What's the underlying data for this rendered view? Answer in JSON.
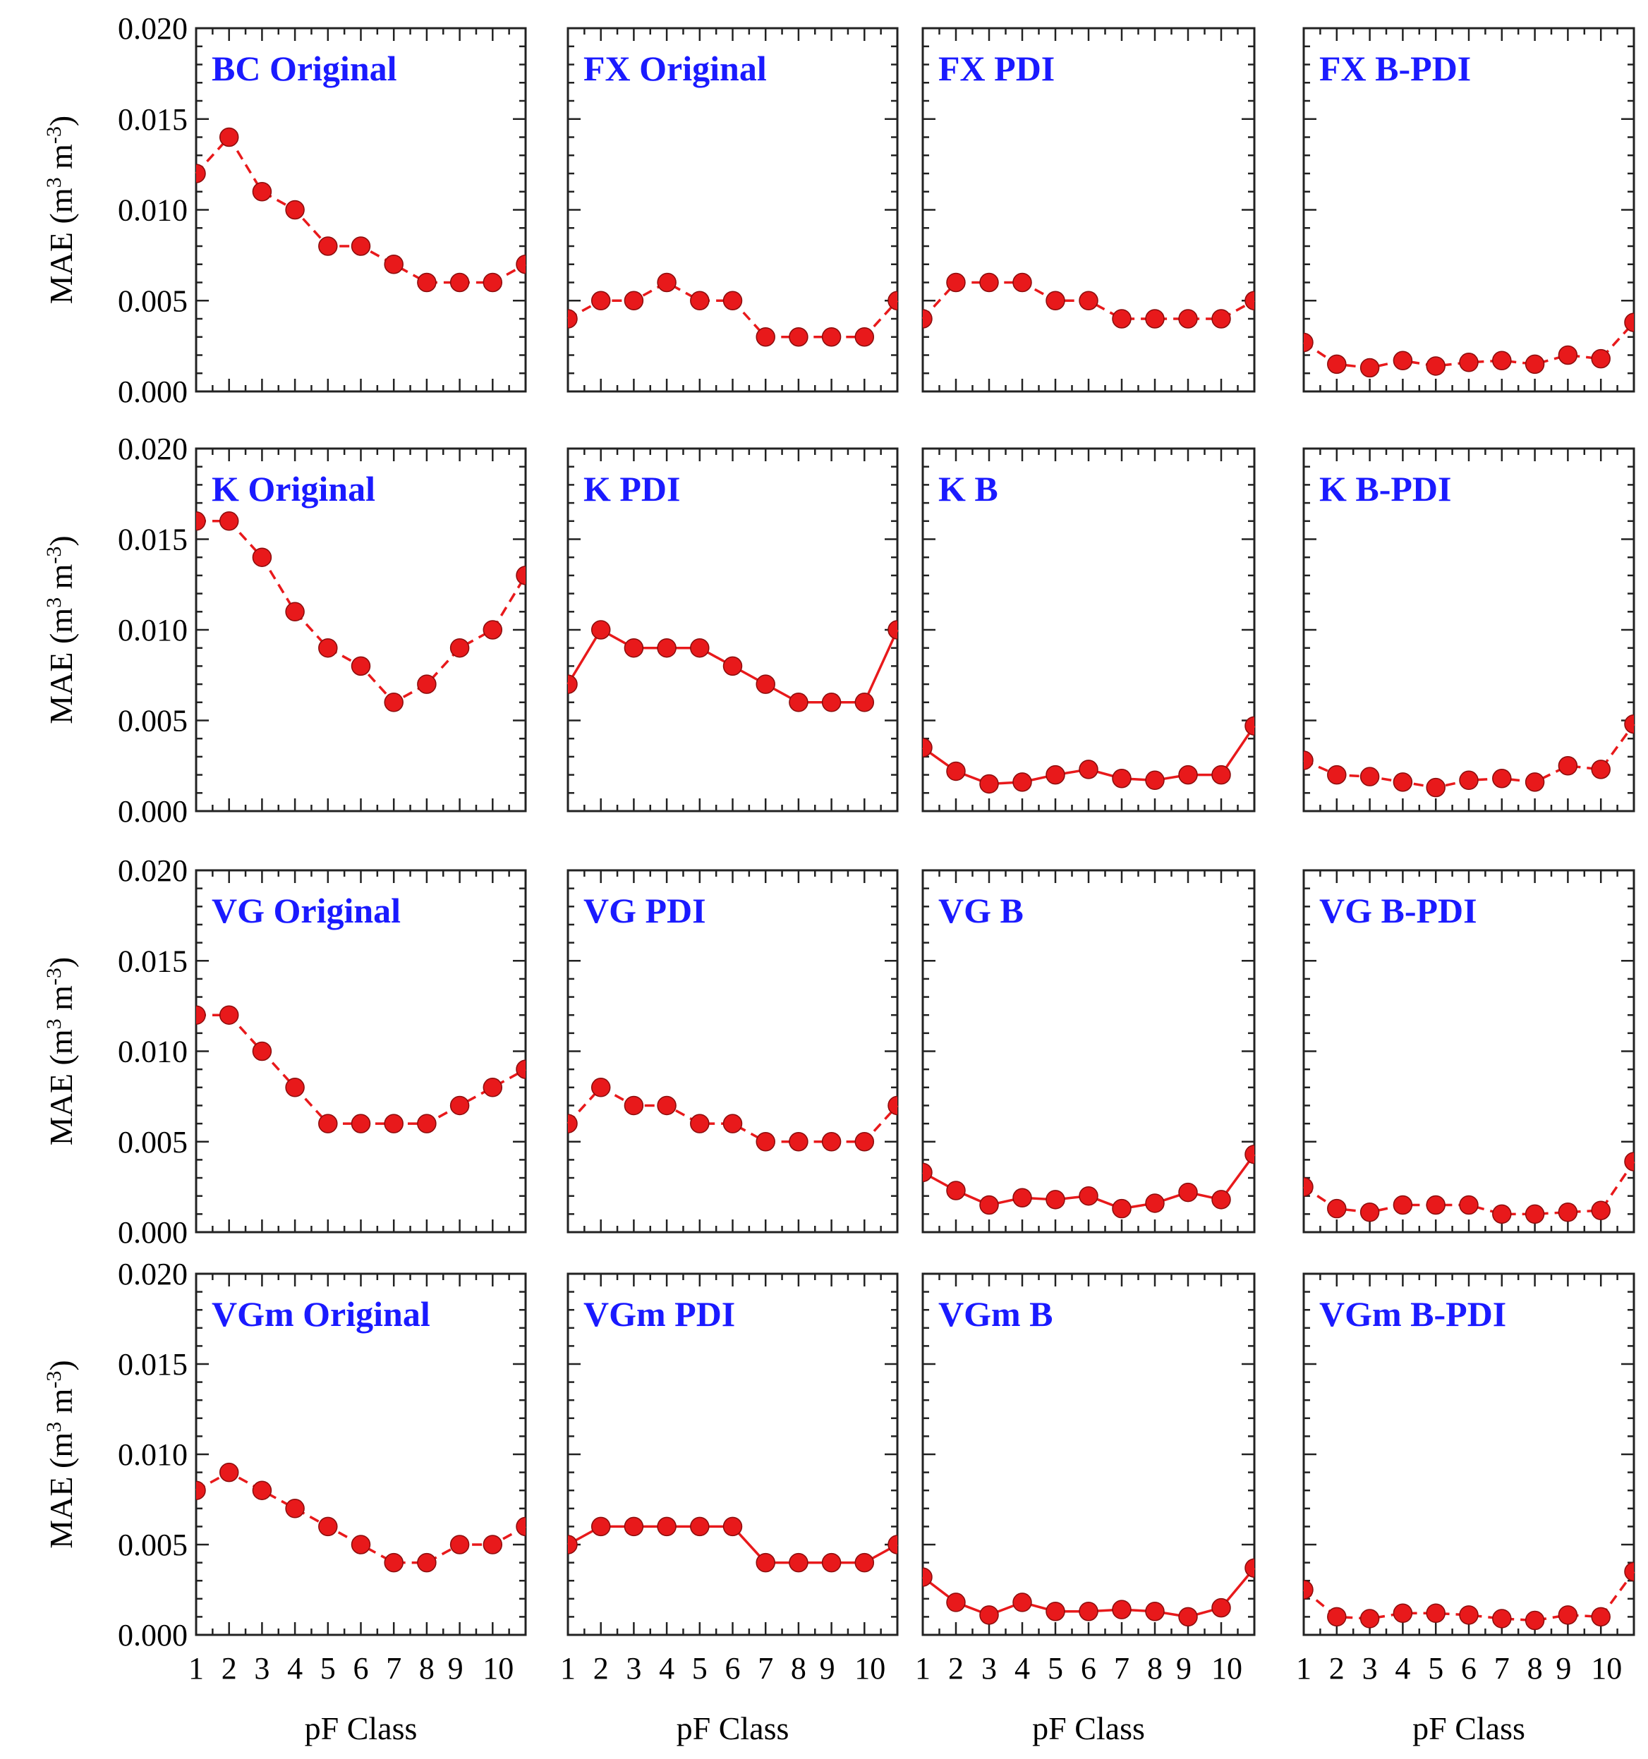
{
  "figure": {
    "ylabel_main": "MAE (m",
    "ylabel_sup1": "3",
    "ylabel_mid": " m",
    "ylabel_sup2": "-3",
    "ylabel_end": ")",
    "xlabel": "pF Class",
    "colors": {
      "marker": "#e8191b",
      "line": "#e8191b",
      "title": "#1a1aff",
      "frame": "#222222"
    }
  },
  "chart_data": [
    {
      "type": "line",
      "title": "BC Original",
      "xlabel": "",
      "ylabel": "MAE (m3 m-3)",
      "x": [
        1,
        2,
        3,
        4,
        5,
        6,
        7,
        8,
        9,
        10,
        11
      ],
      "values": [
        0.012,
        0.014,
        0.011,
        0.01,
        0.008,
        0.008,
        0.007,
        0.006,
        0.006,
        0.006,
        0.007
      ],
      "ylim": [
        0,
        0.02
      ],
      "line_style": "dashed"
    },
    {
      "type": "line",
      "title": "FX Original",
      "xlabel": "",
      "ylabel": "",
      "x": [
        1,
        2,
        3,
        4,
        5,
        6,
        7,
        8,
        9,
        10,
        11
      ],
      "values": [
        0.004,
        0.005,
        0.005,
        0.006,
        0.005,
        0.005,
        0.003,
        0.003,
        0.003,
        0.003,
        0.005
      ],
      "ylim": [
        0,
        0.02
      ],
      "line_style": "dashed"
    },
    {
      "type": "line",
      "title": "FX PDI",
      "xlabel": "",
      "ylabel": "",
      "x": [
        1,
        2,
        3,
        4,
        5,
        6,
        7,
        8,
        9,
        10,
        11
      ],
      "values": [
        0.004,
        0.006,
        0.006,
        0.006,
        0.005,
        0.005,
        0.004,
        0.004,
        0.004,
        0.004,
        0.005
      ],
      "ylim": [
        0,
        0.02
      ],
      "line_style": "dashed"
    },
    {
      "type": "line",
      "title": "FX B-PDI",
      "xlabel": "",
      "ylabel": "",
      "x": [
        1,
        2,
        3,
        4,
        5,
        6,
        7,
        8,
        9,
        10,
        11
      ],
      "values": [
        0.0027,
        0.0015,
        0.0013,
        0.0017,
        0.0014,
        0.0016,
        0.0017,
        0.0015,
        0.002,
        0.0018,
        0.0038
      ],
      "ylim": [
        0,
        0.02
      ],
      "line_style": "dashed"
    },
    {
      "type": "line",
      "title": "K Original",
      "xlabel": "",
      "ylabel": "MAE (m3 m-3)",
      "x": [
        1,
        2,
        3,
        4,
        5,
        6,
        7,
        8,
        9,
        10,
        11
      ],
      "values": [
        0.016,
        0.016,
        0.014,
        0.011,
        0.009,
        0.008,
        0.006,
        0.007,
        0.009,
        0.01,
        0.013
      ],
      "ylim": [
        0,
        0.02
      ],
      "line_style": "dashed"
    },
    {
      "type": "line",
      "title": "K PDI",
      "xlabel": "",
      "ylabel": "",
      "x": [
        1,
        2,
        3,
        4,
        5,
        6,
        7,
        8,
        9,
        10,
        11
      ],
      "values": [
        0.007,
        0.01,
        0.009,
        0.009,
        0.009,
        0.008,
        0.007,
        0.006,
        0.006,
        0.006,
        0.01
      ],
      "ylim": [
        0,
        0.02
      ],
      "line_style": "solid"
    },
    {
      "type": "line",
      "title": "K B",
      "xlabel": "",
      "ylabel": "",
      "x": [
        1,
        2,
        3,
        4,
        5,
        6,
        7,
        8,
        9,
        10,
        11
      ],
      "values": [
        0.0035,
        0.0022,
        0.0015,
        0.0016,
        0.002,
        0.0023,
        0.0018,
        0.0017,
        0.002,
        0.002,
        0.0047
      ],
      "ylim": [
        0,
        0.02
      ],
      "line_style": "solid"
    },
    {
      "type": "line",
      "title": "K B-PDI",
      "xlabel": "",
      "ylabel": "",
      "x": [
        1,
        2,
        3,
        4,
        5,
        6,
        7,
        8,
        9,
        10,
        11
      ],
      "values": [
        0.0028,
        0.002,
        0.0019,
        0.0016,
        0.0013,
        0.0017,
        0.0018,
        0.0016,
        0.0025,
        0.0023,
        0.0048
      ],
      "ylim": [
        0,
        0.02
      ],
      "line_style": "dashed"
    },
    {
      "type": "line",
      "title": "VG Original",
      "xlabel": "",
      "ylabel": "MAE (m3 m-3)",
      "x": [
        1,
        2,
        3,
        4,
        5,
        6,
        7,
        8,
        9,
        10,
        11
      ],
      "values": [
        0.012,
        0.012,
        0.01,
        0.008,
        0.006,
        0.006,
        0.006,
        0.006,
        0.007,
        0.008,
        0.009
      ],
      "ylim": [
        0,
        0.02
      ],
      "line_style": "dashed"
    },
    {
      "type": "line",
      "title": "VG PDI",
      "xlabel": "",
      "ylabel": "",
      "x": [
        1,
        2,
        3,
        4,
        5,
        6,
        7,
        8,
        9,
        10,
        11
      ],
      "values": [
        0.006,
        0.008,
        0.007,
        0.007,
        0.006,
        0.006,
        0.005,
        0.005,
        0.005,
        0.005,
        0.007
      ],
      "ylim": [
        0,
        0.02
      ],
      "line_style": "dashed"
    },
    {
      "type": "line",
      "title": "VG B",
      "xlabel": "",
      "ylabel": "",
      "x": [
        1,
        2,
        3,
        4,
        5,
        6,
        7,
        8,
        9,
        10,
        11
      ],
      "values": [
        0.0033,
        0.0023,
        0.0015,
        0.0019,
        0.0018,
        0.002,
        0.0013,
        0.0016,
        0.0022,
        0.0018,
        0.0043
      ],
      "ylim": [
        0,
        0.02
      ],
      "line_style": "solid"
    },
    {
      "type": "line",
      "title": "VG B-PDI",
      "xlabel": "",
      "ylabel": "",
      "x": [
        1,
        2,
        3,
        4,
        5,
        6,
        7,
        8,
        9,
        10,
        11
      ],
      "values": [
        0.0025,
        0.0013,
        0.0011,
        0.0015,
        0.0015,
        0.0015,
        0.001,
        0.001,
        0.0011,
        0.0012,
        0.0039
      ],
      "ylim": [
        0,
        0.02
      ],
      "line_style": "dashed"
    },
    {
      "type": "line",
      "title": "VGm Original",
      "xlabel": "pF Class",
      "ylabel": "MAE (m3 m-3)",
      "x": [
        1,
        2,
        3,
        4,
        5,
        6,
        7,
        8,
        9,
        10,
        11
      ],
      "values": [
        0.008,
        0.009,
        0.008,
        0.007,
        0.006,
        0.005,
        0.004,
        0.004,
        0.005,
        0.005,
        0.006
      ],
      "ylim": [
        0,
        0.02
      ],
      "line_style": "dashed"
    },
    {
      "type": "line",
      "title": "VGm PDI",
      "xlabel": "pF Class",
      "ylabel": "",
      "x": [
        1,
        2,
        3,
        4,
        5,
        6,
        7,
        8,
        9,
        10,
        11
      ],
      "values": [
        0.005,
        0.006,
        0.006,
        0.006,
        0.006,
        0.006,
        0.004,
        0.004,
        0.004,
        0.004,
        0.005
      ],
      "ylim": [
        0,
        0.02
      ],
      "line_style": "solid"
    },
    {
      "type": "line",
      "title": "VGm B",
      "xlabel": "pF Class",
      "ylabel": "",
      "x": [
        1,
        2,
        3,
        4,
        5,
        6,
        7,
        8,
        9,
        10,
        11
      ],
      "values": [
        0.0032,
        0.0018,
        0.0011,
        0.0018,
        0.0013,
        0.0013,
        0.0014,
        0.0013,
        0.001,
        0.0015,
        0.0037
      ],
      "ylim": [
        0,
        0.02
      ],
      "line_style": "solid"
    },
    {
      "type": "line",
      "title": "VGm B-PDI",
      "xlabel": "pF Class",
      "ylabel": "",
      "x": [
        1,
        2,
        3,
        4,
        5,
        6,
        7,
        8,
        9,
        10,
        11
      ],
      "values": [
        0.0025,
        0.001,
        0.0009,
        0.0012,
        0.0012,
        0.0011,
        0.0009,
        0.0008,
        0.0011,
        0.001,
        0.0035
      ],
      "ylim": [
        0,
        0.02
      ],
      "line_style": "dashed"
    }
  ],
  "axes": {
    "y_ticks": [
      "0.000",
      "0.005",
      "0.010",
      "0.015",
      "0.020"
    ],
    "y_tick_values": [
      0,
      0.005,
      0.01,
      0.015,
      0.02
    ],
    "x_ticks_by_column": [
      [
        "1",
        "2",
        "3",
        "4",
        "5",
        "6",
        "7",
        "8",
        "9",
        "10"
      ],
      [
        "1",
        "2",
        "3",
        "4",
        "5",
        "6",
        "7",
        "8",
        "9",
        "10"
      ],
      [
        "1",
        "2",
        "3",
        "4",
        "5",
        "6",
        "7",
        "8",
        "9",
        "10"
      ],
      [
        "1",
        "2",
        "3",
        "4",
        "5",
        "6",
        "7",
        "8",
        "9",
        "10"
      ]
    ]
  }
}
